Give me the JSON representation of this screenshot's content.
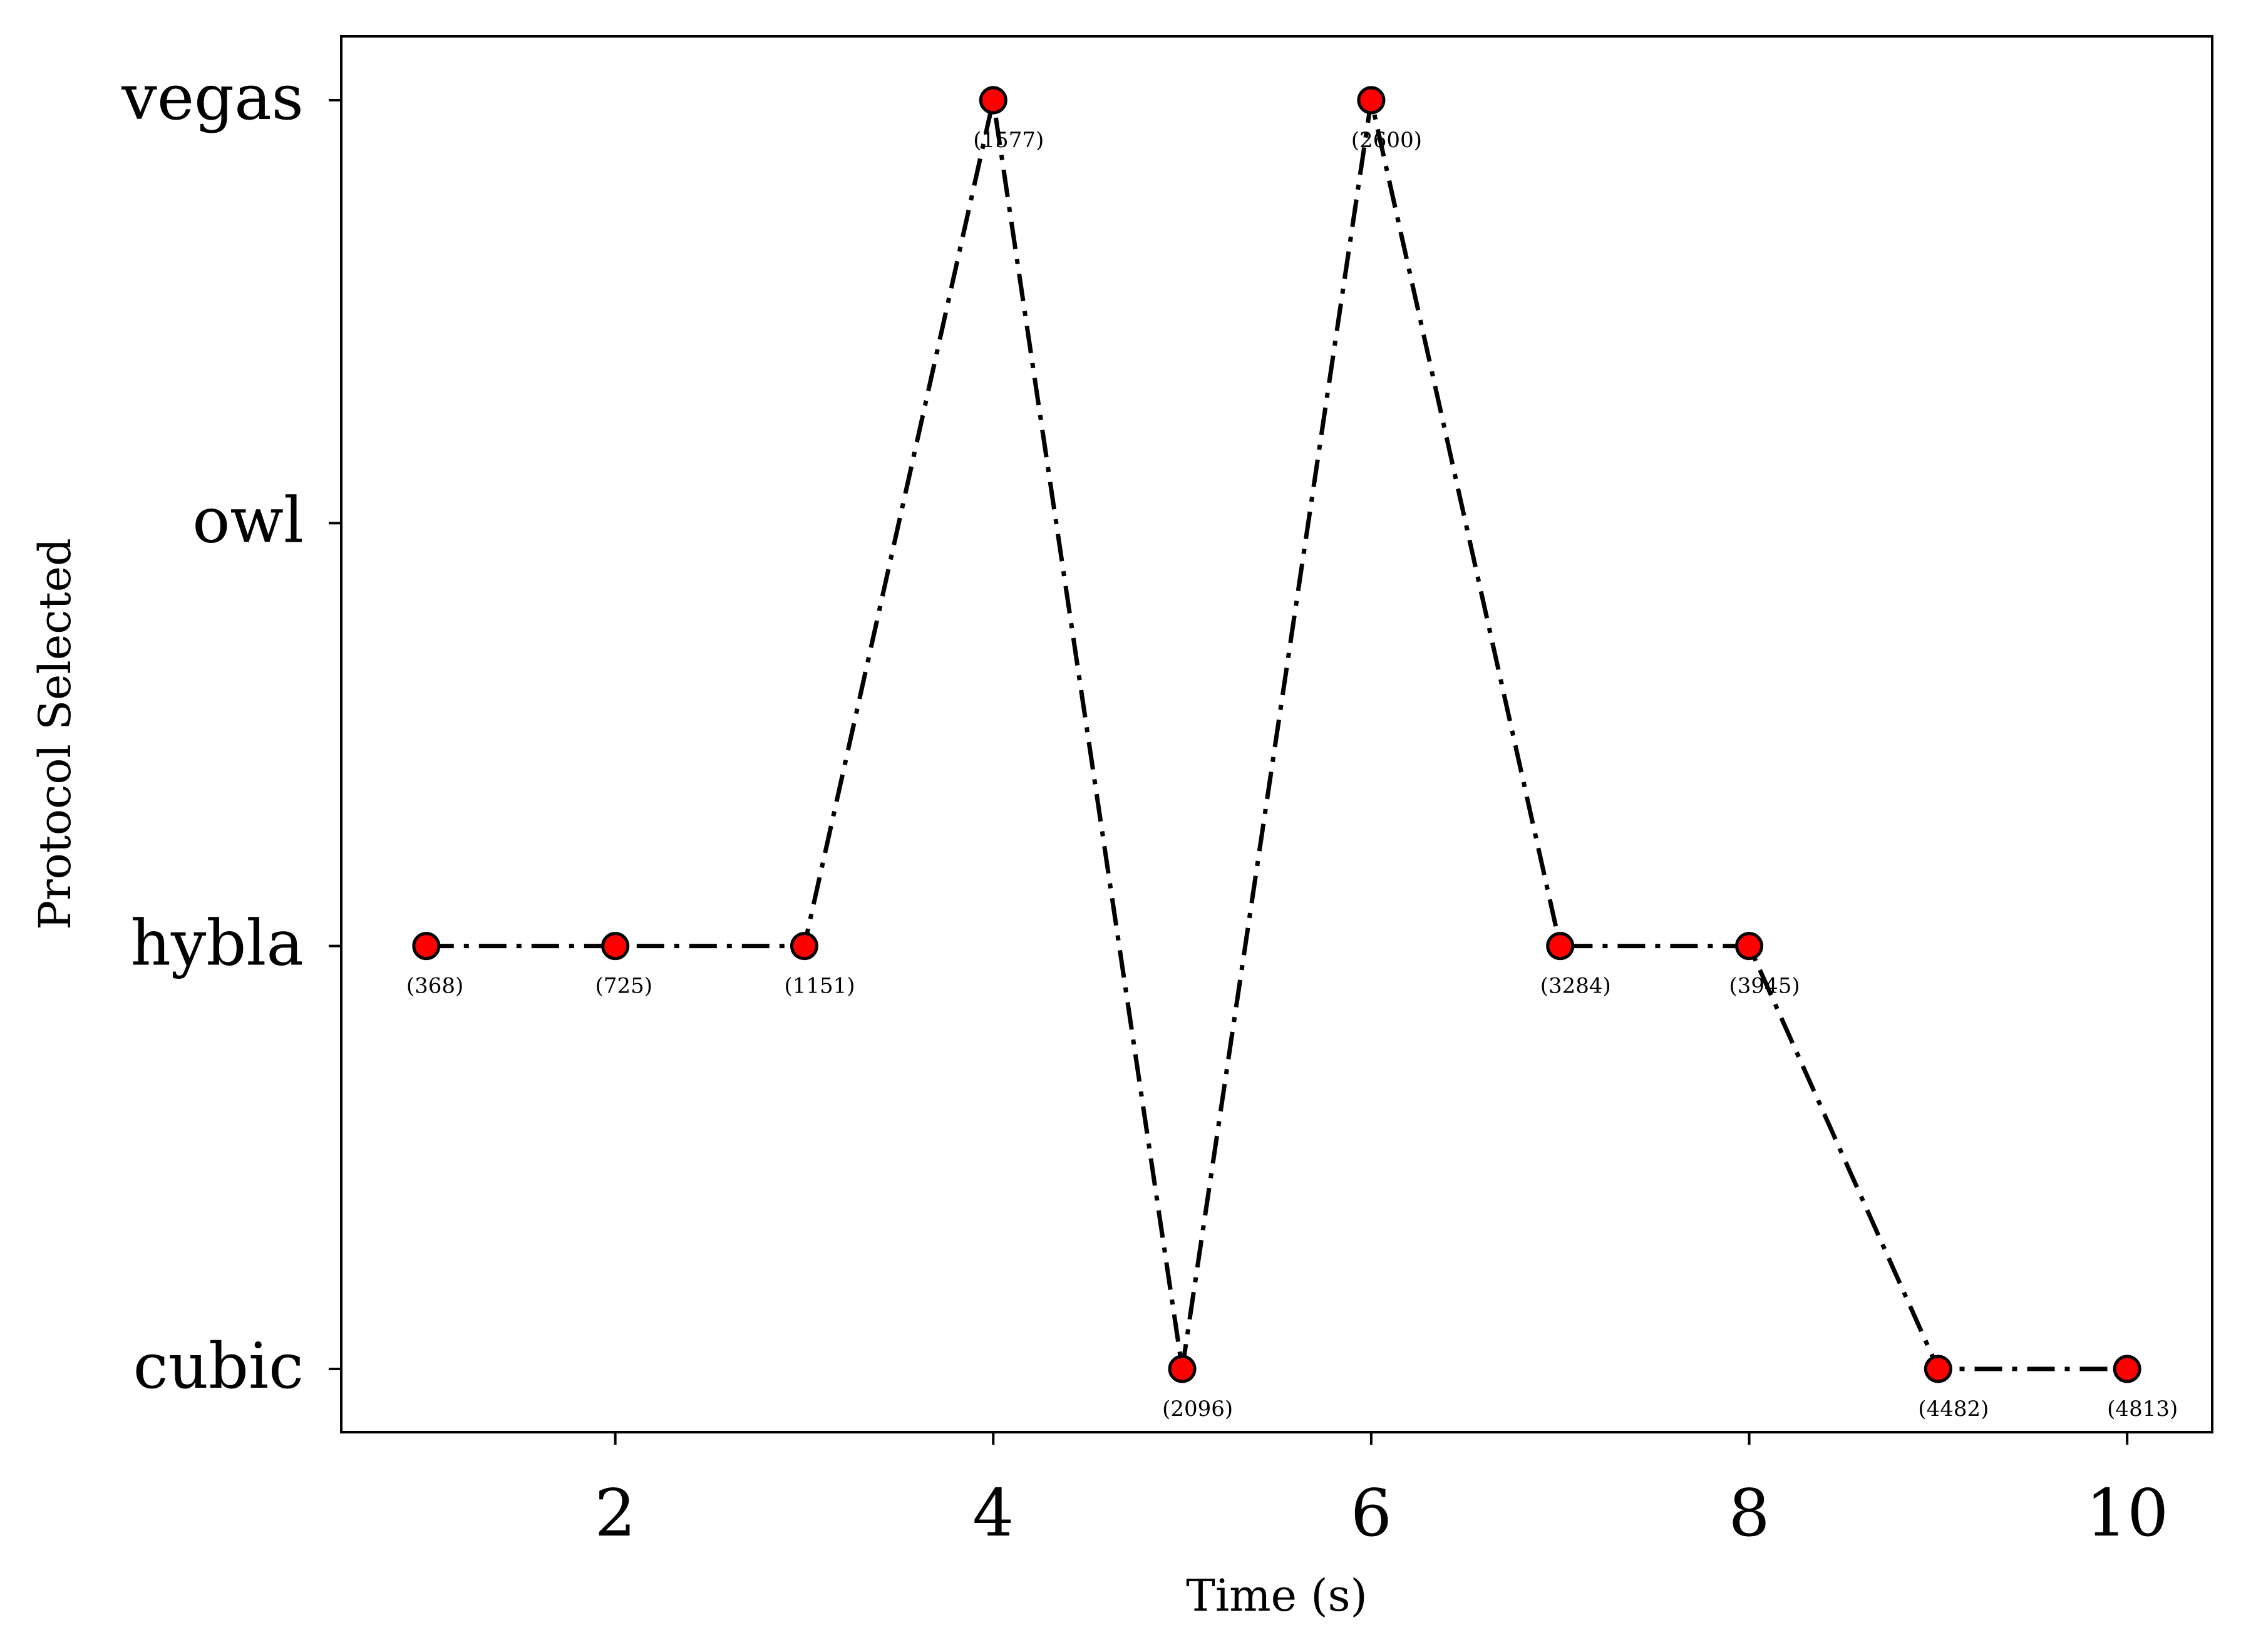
{
  "chart_data": {
    "type": "line",
    "title": "",
    "xlabel": "Time (s)",
    "ylabel": "Protocol Selected",
    "xlim": [
      0.55,
      10.45
    ],
    "x_ticks": [
      2,
      4,
      6,
      8,
      10
    ],
    "x_tick_labels": [
      "2",
      "4",
      "6",
      "8",
      "10"
    ],
    "categories_y": [
      "cubic",
      "hybla",
      "owl",
      "vegas"
    ],
    "grid": false,
    "legend": "none",
    "colors": {
      "line": "#000000",
      "marker_fill": "#ff0000",
      "marker_edge": "#000000",
      "axes": "#000000",
      "background": "#ffffff"
    },
    "series": [
      {
        "name": "Protocol Selected",
        "x": [
          1,
          2,
          3,
          4,
          5,
          6,
          7,
          8,
          9,
          10
        ],
        "y": [
          "hybla",
          "hybla",
          "hybla",
          "vegas",
          "cubic",
          "vegas",
          "hybla",
          "hybla",
          "cubic",
          "cubic"
        ],
        "labels": [
          "(368)",
          "(725)",
          "(1151)",
          "(1577)",
          "(2096)",
          "(2600)",
          "(3284)",
          "(3945)",
          "(4482)",
          "(4813)"
        ]
      }
    ]
  }
}
